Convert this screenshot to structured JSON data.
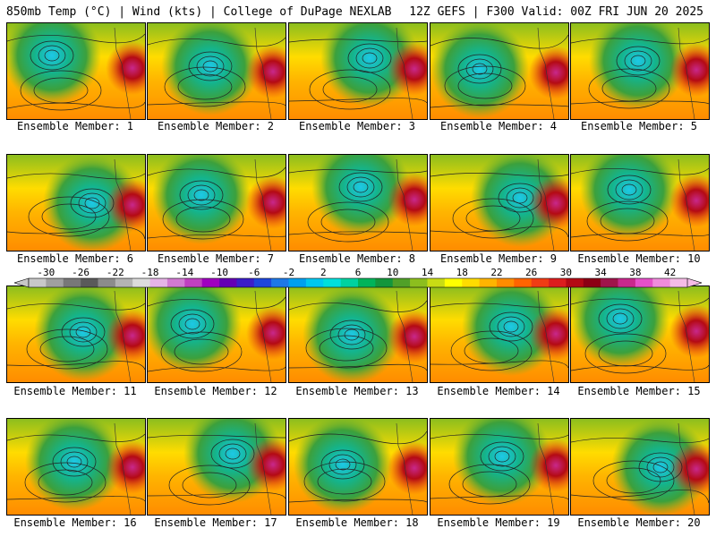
{
  "header": {
    "left": "850mb Temp (°C) | Wind (kts) | College of DuPage NEXLAB",
    "right": "12Z GEFS | F300 Valid: 00Z FRI JUN 20 2025"
  },
  "members": [
    {
      "label": "Ensemble Member: 1"
    },
    {
      "label": "Ensemble Member: 2"
    },
    {
      "label": "Ensemble Member: 3"
    },
    {
      "label": "Ensemble Member: 4"
    },
    {
      "label": "Ensemble Member: 5"
    },
    {
      "label": "Ensemble Member: 6"
    },
    {
      "label": "Ensemble Member: 7"
    },
    {
      "label": "Ensemble Member: 8"
    },
    {
      "label": "Ensemble Member: 9"
    },
    {
      "label": "Ensemble Member: 10"
    },
    {
      "label": "Ensemble Member: 11"
    },
    {
      "label": "Ensemble Member: 12"
    },
    {
      "label": "Ensemble Member: 13"
    },
    {
      "label": "Ensemble Member: 14"
    },
    {
      "label": "Ensemble Member: 15"
    },
    {
      "label": "Ensemble Member: 16"
    },
    {
      "label": "Ensemble Member: 17"
    },
    {
      "label": "Ensemble Member: 18"
    },
    {
      "label": "Ensemble Member: 19"
    },
    {
      "label": "Ensemble Member: 20"
    }
  ],
  "colorbar": {
    "labels": [
      "-30",
      "-26",
      "-22",
      "-18",
      "-14",
      "-10",
      "-6",
      "-2",
      "2",
      "6",
      "10",
      "14",
      "18",
      "22",
      "26",
      "30",
      "34",
      "38",
      "42"
    ],
    "colors": [
      "#c8c8c8",
      "#a0a0a0",
      "#787878",
      "#5a5a5a",
      "#8c8c8c",
      "#b4b4b4",
      "#dcdcdc",
      "#e6b4e6",
      "#d27ad2",
      "#c040c0",
      "#a000c0",
      "#6400b4",
      "#3c1ec8",
      "#1e46dc",
      "#1e78e6",
      "#00a0f0",
      "#00c8f0",
      "#00e0dc",
      "#00d2a0",
      "#00b45a",
      "#14963c",
      "#50a028",
      "#8cbe1e",
      "#c8dc14",
      "#ffff00",
      "#ffdc00",
      "#ffb400",
      "#ff8c00",
      "#ff6400",
      "#f03c14",
      "#dc1e1e",
      "#b40a14",
      "#8c0014",
      "#a0144b",
      "#c8288c",
      "#e650c8",
      "#f08cdc",
      "#f5bce6"
    ]
  }
}
